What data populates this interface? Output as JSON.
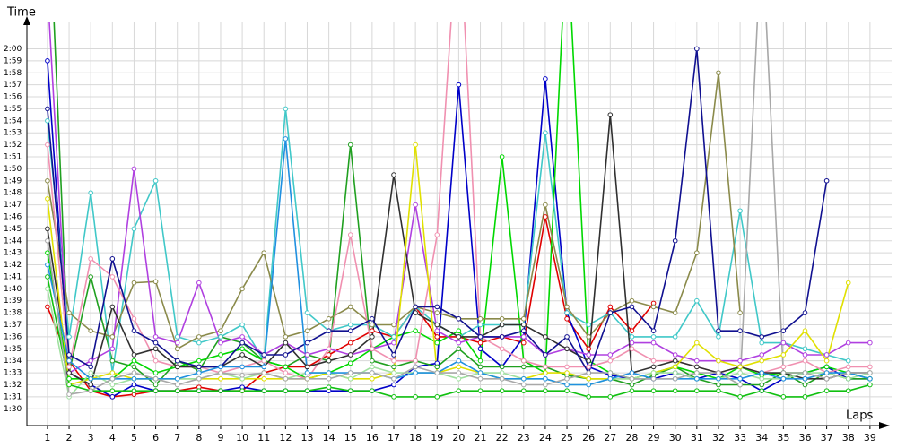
{
  "chart_data": {
    "type": "line",
    "title": "Time",
    "x_label": "Laps",
    "x": [
      1,
      2,
      3,
      4,
      5,
      6,
      7,
      8,
      9,
      10,
      11,
      12,
      13,
      14,
      15,
      16,
      17,
      18,
      19,
      20,
      21,
      22,
      23,
      24,
      25,
      26,
      27,
      28,
      29,
      30,
      31,
      32,
      33,
      34,
      35,
      36,
      37,
      38,
      39
    ],
    "xlim": [
      0.05,
      40
    ],
    "ylim": [
      88.6,
      122.2
    ],
    "grid": true,
    "yticks": [
      {
        "value": 90,
        "label": "1:30"
      },
      {
        "value": 91,
        "label": "1:31"
      },
      {
        "value": 92,
        "label": "1:32"
      },
      {
        "value": 93,
        "label": "1:33"
      },
      {
        "value": 94,
        "label": "1:34"
      },
      {
        "value": 95,
        "label": "1:35"
      },
      {
        "value": 96,
        "label": "1:36"
      },
      {
        "value": 97,
        "label": "1:37"
      },
      {
        "value": 98,
        "label": "1:38"
      },
      {
        "value": 99,
        "label": "1:39"
      },
      {
        "value": 100,
        "label": "1:40"
      },
      {
        "value": 101,
        "label": "1:41"
      },
      {
        "value": 102,
        "label": "1:42"
      },
      {
        "value": 103,
        "label": "1:43"
      },
      {
        "value": 104,
        "label": "1:44"
      },
      {
        "value": 105,
        "label": "1:45"
      },
      {
        "value": 106,
        "label": "1:46"
      },
      {
        "value": 107,
        "label": "1:47"
      },
      {
        "value": 108,
        "label": "1:48"
      },
      {
        "value": 109,
        "label": "1:49"
      },
      {
        "value": 110,
        "label": "1:50"
      },
      {
        "value": 111,
        "label": "1:51"
      },
      {
        "value": 112,
        "label": "1:52"
      },
      {
        "value": 113,
        "label": "1:53"
      },
      {
        "value": 114,
        "label": "1:54"
      },
      {
        "value": 115,
        "label": "1:55"
      },
      {
        "value": 116,
        "label": "1:56"
      },
      {
        "value": 117,
        "label": "1:57"
      },
      {
        "value": 118,
        "label": "1:58"
      },
      {
        "value": 119,
        "label": "1:59"
      },
      {
        "value": 120,
        "label": "2:00"
      }
    ],
    "series": [
      {
        "color": "#e00000",
        "values": [
          98.5,
          94,
          91.5,
          91,
          91.2,
          91.5,
          91.5,
          91.8,
          91.5,
          91.5,
          93,
          93.5,
          93.5,
          94.5,
          95.5,
          96.5,
          96,
          98.5,
          96,
          96,
          95.5,
          96,
          95.5,
          106,
          97.5,
          95,
          98.5,
          96.5,
          98.8,
          null,
          null,
          null,
          null,
          null,
          null,
          null,
          null,
          null,
          null
        ]
      },
      {
        "color": "#0000c8",
        "values": [
          119,
          93,
          92,
          91,
          92,
          91.5,
          91.5,
          91.5,
          91.5,
          91.8,
          91.5,
          91.5,
          91.5,
          91.5,
          91.5,
          91.5,
          92,
          93.5,
          93.8,
          117,
          95,
          93.5,
          96,
          117.5,
          98,
          93.5,
          92.8,
          92.5,
          92.5,
          93,
          92.5,
          93,
          92.5,
          91.5,
          92.5,
          93,
          93.5,
          92.5,
          92.5
        ]
      },
      {
        "color": "#20a020",
        "values": [
          135,
          93,
          101,
          94,
          93.5,
          92,
          94,
          93.2,
          96,
          95.5,
          94,
          93.5,
          94.5,
          94,
          112,
          94,
          93.5,
          94,
          93.5,
          95,
          93.5,
          93.5,
          93.5,
          93.5,
          92.8,
          92.5,
          92.5,
          92,
          92.8,
          93.5,
          92.5,
          92,
          92,
          92,
          93,
          92,
          93,
          92.5,
          92.5
        ]
      },
      {
        "color": "#00d800",
        "values": [
          103,
          92.5,
          92.5,
          92.5,
          94,
          93,
          93.5,
          94,
          94.5,
          95,
          94,
          93.5,
          92.5,
          93,
          93.8,
          95,
          96,
          96.5,
          95.5,
          96.5,
          94,
          111,
          94,
          93,
          130,
          94,
          93,
          92.5,
          93,
          93.5,
          93,
          92.5,
          93.5,
          92.8,
          93,
          93,
          93.5,
          93,
          92.5
        ]
      },
      {
        "color": "#40c8c8",
        "values": [
          114,
          96,
          108,
          93,
          105,
          109,
          96,
          95.5,
          96,
          97,
          94,
          115,
          98,
          96.5,
          97,
          97,
          96,
          98.5,
          97,
          96,
          97,
          97,
          97,
          113,
          98,
          97,
          98,
          96,
          96,
          96,
          99,
          96,
          106.5,
          95.5,
          95.5,
          95,
          94.5,
          94,
          null
        ]
      },
      {
        "color": "#8a8a4a",
        "values": [
          109,
          98,
          96.5,
          96,
          100.5,
          100.6,
          95,
          96,
          96.5,
          100,
          103,
          96,
          96.5,
          97.5,
          98.5,
          97,
          97,
          98.5,
          98,
          97.5,
          97.5,
          97.5,
          97.5,
          107,
          98.5,
          96,
          98,
          99,
          98.5,
          98,
          103,
          118,
          98,
          null,
          null,
          null,
          null,
          null,
          null
        ]
      },
      {
        "color": "#b040e0",
        "values": [
          125,
          93,
          94,
          95,
          110,
          96,
          95.5,
          100.5,
          95.5,
          96,
          94.5,
          95.5,
          94.5,
          95,
          94.5,
          95,
          95.5,
          107,
          96.5,
          95.5,
          96,
          96,
          96,
          94.5,
          95,
          94.5,
          94.5,
          95.5,
          95.5,
          94.5,
          94,
          94,
          94,
          94.5,
          95.5,
          94.5,
          94.5,
          95.5,
          95.5
        ]
      },
      {
        "color": "#f090b0",
        "values": [
          112,
          93.5,
          102.5,
          101,
          97.5,
          94,
          93.5,
          93.5,
          93,
          93.5,
          94,
          93,
          92.5,
          95,
          104.5,
          95,
          94,
          94,
          104.5,
          132,
          96,
          95,
          94,
          93.5,
          93.5,
          93.5,
          94,
          95,
          94,
          94,
          93.5,
          93,
          93.5,
          93,
          93.5,
          94,
          93,
          93.5,
          93.5
        ]
      },
      {
        "color": "#303030",
        "values": [
          105,
          93,
          92,
          98.5,
          94.5,
          95,
          93.5,
          93.5,
          93.5,
          94.5,
          93.5,
          95.5,
          93.5,
          94,
          94.5,
          96,
          109.5,
          98,
          97,
          96,
          96,
          97,
          97,
          96,
          95,
          94,
          114.5,
          93,
          93.5,
          94,
          93.5,
          93,
          93.5,
          93,
          93,
          92.5,
          92.5,
          93,
          93
        ]
      },
      {
        "color": "#e0e000",
        "values": [
          107.5,
          92,
          92.5,
          93,
          92.5,
          92.5,
          92.5,
          92.5,
          92.5,
          92.5,
          92.5,
          92.5,
          92.5,
          93,
          92.5,
          92.5,
          93,
          112,
          93,
          93.5,
          93,
          92.5,
          92.5,
          93,
          93,
          92.5,
          92.5,
          92.5,
          93,
          93.5,
          95.5,
          94,
          93.5,
          94,
          94.5,
          96.5,
          94,
          100.5,
          null
        ]
      },
      {
        "color": "#101090",
        "values": [
          115,
          94.5,
          93.5,
          102.5,
          96.5,
          95.5,
          94,
          93.5,
          93.5,
          95.5,
          94.5,
          94.5,
          95.5,
          96.5,
          96.5,
          97.5,
          94.5,
          98.5,
          98.5,
          97.5,
          96,
          96,
          96.5,
          94.5,
          96,
          93,
          98,
          98.5,
          96.5,
          104,
          120,
          96.5,
          96.5,
          96,
          96.5,
          98,
          109,
          null,
          null
        ]
      },
      {
        "color": "#a0e0a0",
        "values": [
          100,
          91,
          93,
          92,
          92.5,
          92.5,
          92.5,
          92.5,
          93,
          92.5,
          93,
          92.5,
          93,
          93,
          92.5,
          93.5,
          93,
          93,
          93,
          92.5,
          93,
          93,
          92.5,
          92.5,
          92,
          92,
          92.5,
          92.5,
          93,
          93,
          92.5,
          92.5,
          93,
          92.5,
          92.5,
          93,
          93,
          92.5,
          93
        ]
      },
      {
        "color": "#2090e0",
        "values": [
          102,
          94,
          92.5,
          92.5,
          92.5,
          92.5,
          92.5,
          93,
          93.5,
          93.5,
          93.5,
          112.5,
          93,
          93,
          93,
          93,
          92.5,
          93,
          93,
          94,
          93,
          92.5,
          92.5,
          92.5,
          92,
          92,
          92.5,
          93,
          92.5,
          92.5,
          92.5,
          92.5,
          92.5,
          93,
          92.5,
          92.5,
          93,
          93,
          92.5
        ]
      },
      {
        "color": "#10c010",
        "values": [
          101,
          92,
          91.5,
          91.5,
          91.5,
          91.5,
          91.5,
          91.5,
          91.5,
          91.5,
          91.5,
          91.5,
          91.5,
          91.8,
          91.5,
          91.5,
          91,
          91,
          91,
          91.5,
          91.5,
          91.5,
          91.5,
          91.5,
          91.5,
          91,
          91,
          91.5,
          91.5,
          91.5,
          91.5,
          91.5,
          91,
          91.5,
          91,
          91,
          91.5,
          91.5,
          92
        ]
      },
      {
        "color": "#a8a8a8",
        "values": [
          104,
          91.2,
          91.5,
          92.5,
          93,
          92.5,
          92,
          92.5,
          93,
          92.8,
          93,
          92.5,
          92.5,
          92.5,
          93,
          93,
          92.5,
          93.5,
          93,
          93,
          92.5,
          92.5,
          92,
          92,
          92.5,
          93,
          93,
          92.5,
          92.5,
          92.5,
          93,
          93,
          92,
          130,
          93,
          93,
          92.5,
          93,
          93
        ]
      }
    ]
  }
}
